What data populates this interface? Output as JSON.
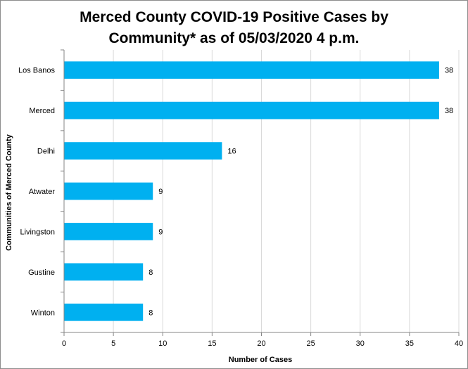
{
  "chart_data": {
    "type": "bar",
    "orientation": "horizontal",
    "title_line1": "Merced County COVID-19 Positive Cases by",
    "title_line2": "Community* as of 05/03/2020  4 p.m.",
    "categories": [
      "Los Banos",
      "Merced",
      "Delhi",
      "Atwater",
      "Livingston",
      "Gustine",
      "Winton"
    ],
    "values": [
      38,
      38,
      16,
      9,
      9,
      8,
      8
    ],
    "xlabel": "Number of Cases",
    "ylabel": "Communities of Merced County",
    "xlim": [
      0,
      40
    ],
    "xticks": [
      0,
      5,
      10,
      15,
      20,
      25,
      30,
      35,
      40
    ],
    "grid": true,
    "bar_color": "#00b0f0",
    "grid_color": "#d9d9d9"
  }
}
